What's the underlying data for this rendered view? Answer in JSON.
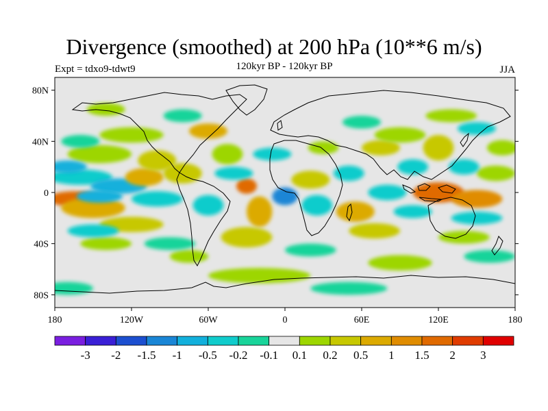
{
  "title": "Divergence (smoothed) at 200 hPa (10**6 m/s)",
  "subtitle": "120kyr BP - 120kyr BP",
  "experiment": "Expt = tdxo9-tdwt9",
  "season": "JJA",
  "map": {
    "lon_range": [
      -180,
      180
    ],
    "lat_range": [
      -90,
      90
    ],
    "lat_ticks": [
      {
        "lat": 80,
        "label": "80N"
      },
      {
        "lat": 40,
        "label": "40N"
      },
      {
        "lat": 0,
        "label": "0"
      },
      {
        "lat": -40,
        "label": "40S"
      },
      {
        "lat": -80,
        "label": "80S"
      }
    ],
    "lon_ticks": [
      {
        "lon": -180,
        "label": "180"
      },
      {
        "lon": -120,
        "label": "120W"
      },
      {
        "lon": -60,
        "label": "60W"
      },
      {
        "lon": 0,
        "label": "0"
      },
      {
        "lon": 60,
        "label": "60E"
      },
      {
        "lon": 120,
        "label": "120E"
      },
      {
        "lon": 180,
        "label": "180"
      }
    ],
    "background_color": "#e6e6e6"
  },
  "colorbar": {
    "colors": [
      "#7a1ee0",
      "#3a1fd6",
      "#1c4fd0",
      "#1a86d6",
      "#12b0dc",
      "#10cccc",
      "#19d49a",
      "#e6e6e6",
      "#9dd600",
      "#c7c800",
      "#dcaa00",
      "#e08c00",
      "#e06a00",
      "#e03c00",
      "#e00000"
    ],
    "labels": [
      "-3",
      "-2",
      "-1.5",
      "-1",
      "-0.5",
      "-0.2",
      "-0.1",
      "0.1",
      "0.2",
      "0.5",
      "1",
      "1.5",
      "2",
      "3"
    ]
  },
  "blobs": [
    {
      "lon": -165,
      "lat": -5,
      "rx": 20,
      "ry": 6,
      "level": 12
    },
    {
      "lon": -150,
      "lat": -12,
      "rx": 25,
      "ry": 8,
      "level": 10
    },
    {
      "lon": -160,
      "lat": 12,
      "rx": 25,
      "ry": 6,
      "level": 5
    },
    {
      "lon": -130,
      "lat": 5,
      "rx": 22,
      "ry": 6,
      "level": 4
    },
    {
      "lon": -110,
      "lat": 12,
      "rx": 15,
      "ry": 7,
      "level": 10
    },
    {
      "lon": -100,
      "lat": 25,
      "rx": 15,
      "ry": 8,
      "level": 9
    },
    {
      "lon": -80,
      "lat": 15,
      "rx": 15,
      "ry": 8,
      "level": 9
    },
    {
      "lon": -145,
      "lat": 30,
      "rx": 25,
      "ry": 7,
      "level": 8
    },
    {
      "lon": -120,
      "lat": 45,
      "rx": 25,
      "ry": 6,
      "level": 8
    },
    {
      "lon": -60,
      "lat": 48,
      "rx": 15,
      "ry": 6,
      "level": 10
    },
    {
      "lon": -45,
      "lat": 30,
      "rx": 12,
      "ry": 8,
      "level": 8
    },
    {
      "lon": -30,
      "lat": 5,
      "rx": 8,
      "ry": 6,
      "level": 12
    },
    {
      "lon": -20,
      "lat": -15,
      "rx": 10,
      "ry": 12,
      "level": 10
    },
    {
      "lon": -30,
      "lat": -35,
      "rx": 20,
      "ry": 8,
      "level": 9
    },
    {
      "lon": -120,
      "lat": -25,
      "rx": 25,
      "ry": 6,
      "level": 9
    },
    {
      "lon": -140,
      "lat": -40,
      "rx": 20,
      "ry": 5,
      "level": 8
    },
    {
      "lon": -75,
      "lat": -50,
      "rx": 15,
      "ry": 5,
      "level": 8
    },
    {
      "lon": 20,
      "lat": 10,
      "rx": 15,
      "ry": 7,
      "level": 9
    },
    {
      "lon": 30,
      "lat": 35,
      "rx": 12,
      "ry": 5,
      "level": 8
    },
    {
      "lon": 55,
      "lat": -15,
      "rx": 15,
      "ry": 8,
      "level": 10
    },
    {
      "lon": 70,
      "lat": -30,
      "rx": 20,
      "ry": 6,
      "level": 9
    },
    {
      "lon": 75,
      "lat": 35,
      "rx": 15,
      "ry": 6,
      "level": 9
    },
    {
      "lon": 90,
      "lat": 45,
      "rx": 20,
      "ry": 6,
      "level": 8
    },
    {
      "lon": 120,
      "lat": 35,
      "rx": 12,
      "ry": 10,
      "level": 9
    },
    {
      "lon": 120,
      "lat": 0,
      "rx": 20,
      "ry": 8,
      "level": 12
    },
    {
      "lon": 150,
      "lat": -5,
      "rx": 20,
      "ry": 7,
      "level": 11
    },
    {
      "lon": 165,
      "lat": 15,
      "rx": 15,
      "ry": 6,
      "level": 8
    },
    {
      "lon": 170,
      "lat": 35,
      "rx": 12,
      "ry": 6,
      "level": 8
    },
    {
      "lon": 90,
      "lat": -55,
      "rx": 25,
      "ry": 6,
      "level": 8
    },
    {
      "lon": -20,
      "lat": -65,
      "rx": 40,
      "ry": 6,
      "level": 8
    },
    {
      "lon": 140,
      "lat": -35,
      "rx": 20,
      "ry": 5,
      "level": 8
    },
    {
      "lon": 130,
      "lat": 60,
      "rx": 20,
      "ry": 5,
      "level": 8
    },
    {
      "lon": -140,
      "lat": 65,
      "rx": 15,
      "ry": 5,
      "level": 8
    },
    {
      "lon": -170,
      "lat": 20,
      "rx": 15,
      "ry": 5,
      "level": 4
    },
    {
      "lon": -145,
      "lat": -3,
      "rx": 18,
      "ry": 5,
      "level": 4
    },
    {
      "lon": -100,
      "lat": -5,
      "rx": 20,
      "ry": 6,
      "level": 5
    },
    {
      "lon": -60,
      "lat": -10,
      "rx": 12,
      "ry": 8,
      "level": 5
    },
    {
      "lon": -40,
      "lat": 15,
      "rx": 15,
      "ry": 5,
      "level": 5
    },
    {
      "lon": -10,
      "lat": 30,
      "rx": 15,
      "ry": 5,
      "level": 5
    },
    {
      "lon": 0,
      "lat": -3,
      "rx": 10,
      "ry": 7,
      "level": 3
    },
    {
      "lon": 25,
      "lat": -10,
      "rx": 12,
      "ry": 8,
      "level": 5
    },
    {
      "lon": 50,
      "lat": 15,
      "rx": 12,
      "ry": 6,
      "level": 5
    },
    {
      "lon": 80,
      "lat": 0,
      "rx": 15,
      "ry": 6,
      "level": 5
    },
    {
      "lon": 100,
      "lat": 20,
      "rx": 12,
      "ry": 6,
      "level": 5
    },
    {
      "lon": 140,
      "lat": 20,
      "rx": 12,
      "ry": 6,
      "level": 5
    },
    {
      "lon": 150,
      "lat": -20,
      "rx": 20,
      "ry": 5,
      "level": 5
    },
    {
      "lon": 100,
      "lat": -15,
      "rx": 15,
      "ry": 5,
      "level": 5
    },
    {
      "lon": -150,
      "lat": -30,
      "rx": 20,
      "ry": 5,
      "level": 5
    },
    {
      "lon": -90,
      "lat": -40,
      "rx": 20,
      "ry": 5,
      "level": 6
    },
    {
      "lon": 20,
      "lat": -45,
      "rx": 20,
      "ry": 5,
      "level": 6
    },
    {
      "lon": 160,
      "lat": -50,
      "rx": 20,
      "ry": 5,
      "level": 6
    },
    {
      "lon": -160,
      "lat": 40,
      "rx": 15,
      "ry": 5,
      "level": 6
    },
    {
      "lon": 60,
      "lat": 55,
      "rx": 15,
      "ry": 5,
      "level": 6
    },
    {
      "lon": 150,
      "lat": 50,
      "rx": 15,
      "ry": 5,
      "level": 5
    },
    {
      "lon": -170,
      "lat": -75,
      "rx": 20,
      "ry": 5,
      "level": 6
    },
    {
      "lon": 50,
      "lat": -75,
      "rx": 30,
      "ry": 5,
      "level": 6
    },
    {
      "lon": -80,
      "lat": 60,
      "rx": 15,
      "ry": 5,
      "level": 6
    }
  ]
}
